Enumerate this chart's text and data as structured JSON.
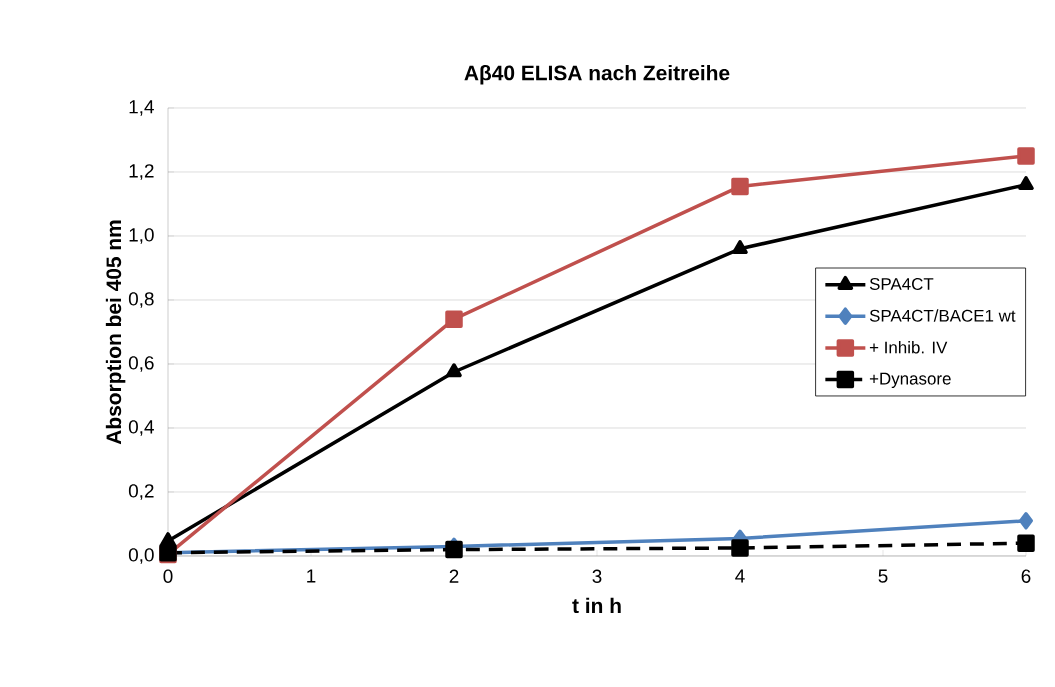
{
  "chart_data": {
    "type": "line",
    "title": "Aβ40 ELISA nach Zeitreihe",
    "xlabel": "t in h",
    "ylabel": "Absorption bei 405 nm",
    "x": [
      0,
      2,
      4,
      6
    ],
    "series": [
      {
        "name": "SPA4CT",
        "color": "#000000",
        "marker": "triangle",
        "line_style": "solid",
        "values": [
          0.047,
          0.575,
          0.96,
          1.16
        ]
      },
      {
        "name": "SPA4CT/BACE1 wt",
        "color": "#4f81bd",
        "marker": "diamond",
        "line_style": "solid",
        "values": [
          0.01,
          0.03,
          0.055,
          0.11
        ]
      },
      {
        "name": "+ Inhib. IV",
        "color": "#c0504d",
        "marker": "square",
        "line_style": "solid",
        "values": [
          0.005,
          0.74,
          1.155,
          1.25
        ]
      },
      {
        "name": "+Dynasore",
        "color": "#000000",
        "marker": "square",
        "line_style": "dashed",
        "values": [
          0.01,
          0.02,
          0.025,
          0.04
        ]
      }
    ],
    "xlim": [
      0,
      6
    ],
    "xticks": [
      0,
      1,
      2,
      3,
      4,
      5,
      6
    ],
    "ylim": [
      0,
      1.4
    ],
    "yticks": [
      {
        "value": 0,
        "label": "0,0"
      },
      {
        "value": 0.2,
        "label": "0,2"
      },
      {
        "value": 0.4,
        "label": "0,4"
      },
      {
        "value": 0.6,
        "label": "0,6"
      },
      {
        "value": 0.8,
        "label": "0,8"
      },
      {
        "value": 1.0,
        "label": "1,0"
      },
      {
        "value": 1.2,
        "label": "1,2"
      },
      {
        "value": 1.4,
        "label": "1,4"
      }
    ],
    "grid": "y",
    "legend": "right"
  }
}
